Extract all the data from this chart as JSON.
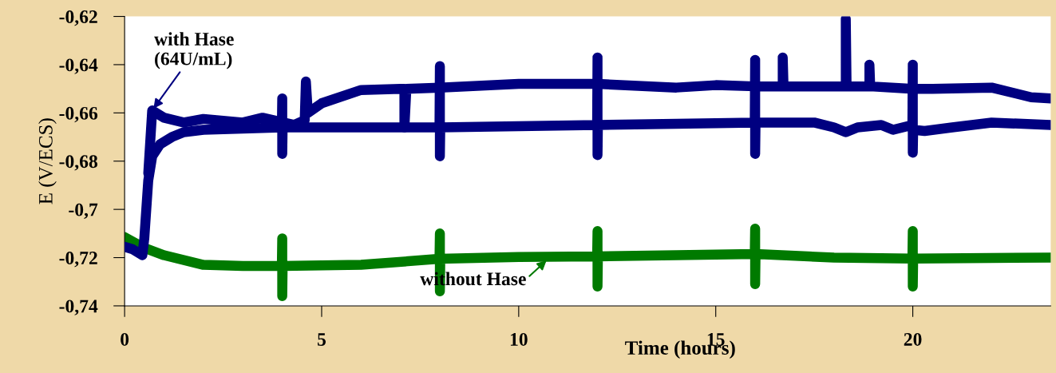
{
  "chart_data": {
    "type": "line",
    "xlabel": "Time (hours)",
    "ylabel": "E (V/ECS)",
    "xlim": [
      0,
      23.5
    ],
    "xticks": [
      0,
      5,
      10,
      15,
      20
    ],
    "ylim": [
      -0.74,
      -0.62
    ],
    "yticks": [
      {
        "value": -0.74,
        "label": "-0,74"
      },
      {
        "value": -0.72,
        "label": "-0,72"
      },
      {
        "value": -0.7,
        "label": "-0,7"
      },
      {
        "value": -0.68,
        "label": "-0,68"
      },
      {
        "value": -0.66,
        "label": "-0,66"
      },
      {
        "value": -0.64,
        "label": "-0,64"
      },
      {
        "value": -0.62,
        "label": "-0,62"
      }
    ],
    "grid": false,
    "legend": false,
    "marker": "none",
    "line_style": "solid",
    "series": [
      {
        "color": "#007a00",
        "x": [
          0,
          0.5,
          1,
          2,
          3,
          3.99,
          4,
          4,
          4.01,
          6,
          7.99,
          8,
          8,
          8.01,
          10,
          11.99,
          12,
          12,
          12.01,
          14,
          15.99,
          16,
          16,
          16.01,
          18,
          19.99,
          20,
          20,
          20.01,
          23.5
        ],
        "values": [
          -0.7115,
          -0.716,
          -0.719,
          -0.723,
          -0.7235,
          -0.7235,
          -0.712,
          -0.736,
          -0.7235,
          -0.723,
          -0.7205,
          -0.71,
          -0.734,
          -0.7205,
          -0.7197,
          -0.7195,
          -0.709,
          -0.732,
          -0.7195,
          -0.719,
          -0.7185,
          -0.708,
          -0.731,
          -0.7185,
          -0.72,
          -0.7204,
          -0.709,
          -0.732,
          -0.7204,
          -0.72
        ]
      },
      {
        "color": "#000080",
        "x": [
          0,
          0.2,
          0.45,
          0.5,
          0.55,
          0.6,
          0.7,
          0.9,
          1.2,
          1.5,
          2,
          3,
          3.99,
          4,
          4,
          4.01,
          6,
          7.99,
          8,
          8,
          8.01,
          10,
          11.99,
          12,
          12,
          12.01,
          14,
          15.99,
          16,
          16,
          16.01,
          17.5,
          18,
          18.3,
          18.6,
          19.2,
          19.5,
          19.99,
          20,
          20,
          20.01,
          20.3,
          21,
          22,
          23.5
        ],
        "values": [
          -0.7155,
          -0.7165,
          -0.719,
          -0.712,
          -0.7,
          -0.688,
          -0.678,
          -0.673,
          -0.67,
          -0.668,
          -0.667,
          -0.6665,
          -0.666,
          -0.654,
          -0.677,
          -0.666,
          -0.666,
          -0.666,
          -0.6406,
          -0.678,
          -0.666,
          -0.6655,
          -0.665,
          -0.637,
          -0.6775,
          -0.665,
          -0.6645,
          -0.664,
          -0.638,
          -0.677,
          -0.664,
          -0.664,
          -0.666,
          -0.668,
          -0.666,
          -0.665,
          -0.667,
          -0.665,
          -0.64,
          -0.6765,
          -0.667,
          -0.6675,
          -0.666,
          -0.664,
          -0.665
        ]
      },
      {
        "color": "#000080",
        "x": [
          0.6,
          0.7,
          1,
          1.5,
          2,
          3,
          3.5,
          4.3,
          4.57,
          4.6,
          4.65,
          5,
          6,
          7,
          7.1,
          7.1,
          7.15,
          8,
          10,
          12,
          14,
          15,
          16,
          16.7,
          16.7,
          16.72,
          18.3,
          18.3,
          18.32,
          18.9,
          18.9,
          18.92,
          20,
          20.5,
          22,
          23,
          23.5
        ],
        "values": [
          -0.685,
          -0.659,
          -0.662,
          -0.664,
          -0.6625,
          -0.664,
          -0.662,
          -0.665,
          -0.663,
          -0.647,
          -0.66,
          -0.656,
          -0.6505,
          -0.65,
          -0.65,
          -0.666,
          -0.65,
          -0.6495,
          -0.648,
          -0.648,
          -0.6495,
          -0.6485,
          -0.649,
          -0.649,
          -0.637,
          -0.649,
          -0.649,
          -0.621,
          -0.649,
          -0.649,
          -0.64,
          -0.649,
          -0.65,
          -0.65,
          -0.6495,
          -0.6535,
          -0.654
        ]
      }
    ],
    "annotations": [
      {
        "text": "with Hase\n(64U/mL)",
        "x": 0.7,
        "y": -0.659
      },
      {
        "text": "without Hase",
        "x": 10.75,
        "y": -0.7205
      }
    ]
  }
}
